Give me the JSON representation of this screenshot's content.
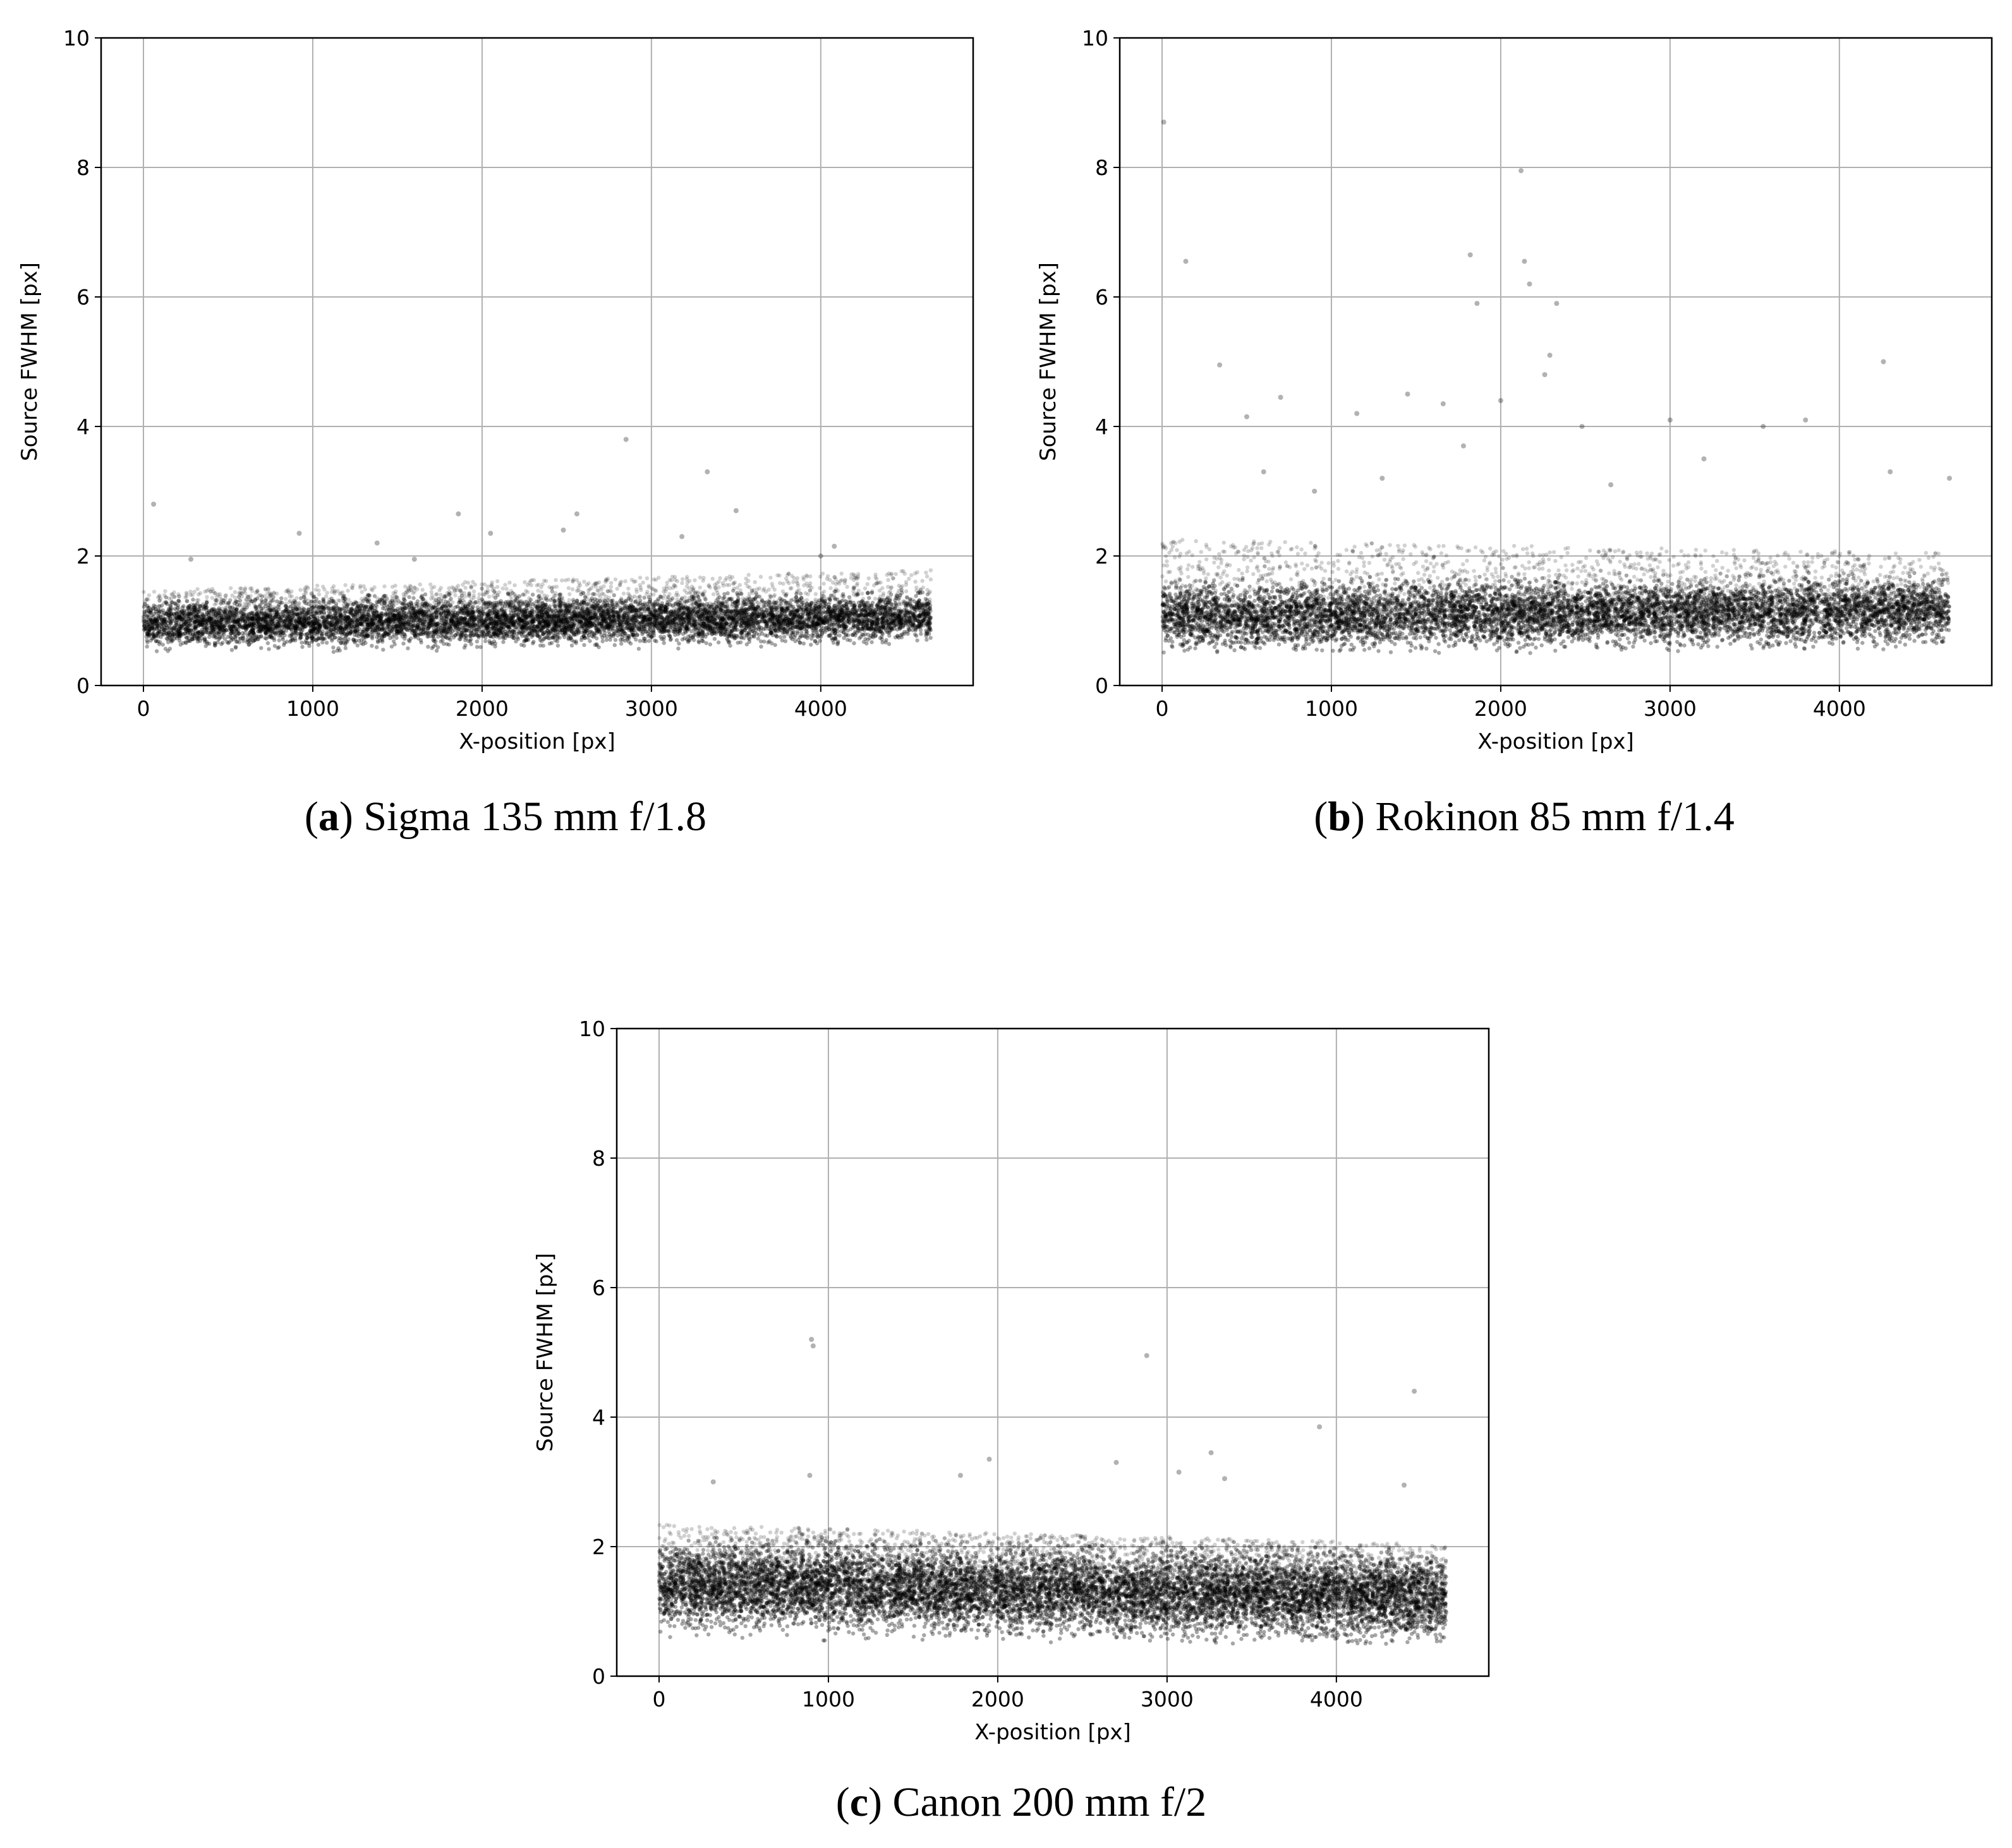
{
  "chart_data": [
    {
      "id": "a",
      "type": "scatter",
      "caption_letter": "a",
      "caption_text": "Sigma 135 mm f/1.8",
      "xlabel": "X-position [px]",
      "ylabel": "Source FWHM [px]",
      "xlim": [
        -250,
        4900
      ],
      "ylim": [
        0,
        10
      ],
      "xticks": [
        0,
        1000,
        2000,
        3000,
        4000
      ],
      "yticks": [
        0,
        2,
        4,
        6,
        8,
        10
      ],
      "grid": true,
      "marker_color": "#000000",
      "bulk": {
        "x_range": [
          0,
          4650
        ],
        "median_start": 0.95,
        "median_end": 1.05,
        "spread": 0.25,
        "y_min": 0.5,
        "y_max_start": 1.45,
        "y_max_end": 1.75,
        "count": 9000
      },
      "outliers": [
        [
          60,
          2.8
        ],
        [
          920,
          2.35
        ],
        [
          1380,
          2.2
        ],
        [
          1860,
          2.65
        ],
        [
          2050,
          2.35
        ],
        [
          2480,
          2.4
        ],
        [
          2560,
          2.65
        ],
        [
          2850,
          3.8
        ],
        [
          3180,
          2.3
        ],
        [
          3330,
          3.3
        ],
        [
          3500,
          2.7
        ],
        [
          4080,
          2.15
        ],
        [
          4000,
          2.0
        ],
        [
          280,
          1.95
        ],
        [
          1600,
          1.95
        ]
      ]
    },
    {
      "id": "b",
      "type": "scatter",
      "caption_letter": "b",
      "caption_text": "Rokinon 85 mm f/1.4",
      "xlabel": "X-position [px]",
      "ylabel": "Source FWHM [px]",
      "xlim": [
        -250,
        4900
      ],
      "ylim": [
        0,
        10
      ],
      "xticks": [
        0,
        1000,
        2000,
        3000,
        4000
      ],
      "yticks": [
        0,
        2,
        4,
        6,
        8,
        10
      ],
      "grid": true,
      "marker_color": "#000000",
      "bulk": {
        "x_range": [
          0,
          4650
        ],
        "median_start": 1.05,
        "median_end": 1.15,
        "spread": 0.35,
        "y_min": 0.5,
        "y_max_start": 2.2,
        "y_max_end": 2.0,
        "count": 9000
      },
      "outliers": [
        [
          10,
          8.7
        ],
        [
          140,
          6.55
        ],
        [
          340,
          4.95
        ],
        [
          500,
          4.15
        ],
        [
          700,
          4.45
        ],
        [
          1150,
          4.2
        ],
        [
          1450,
          4.5
        ],
        [
          1660,
          4.35
        ],
        [
          1780,
          3.7
        ],
        [
          1820,
          6.65
        ],
        [
          1860,
          5.9
        ],
        [
          2000,
          4.4
        ],
        [
          2120,
          7.95
        ],
        [
          2140,
          6.55
        ],
        [
          2170,
          6.2
        ],
        [
          2330,
          5.9
        ],
        [
          2290,
          5.1
        ],
        [
          2260,
          4.8
        ],
        [
          2480,
          4.0
        ],
        [
          3000,
          4.1
        ],
        [
          3200,
          3.5
        ],
        [
          3550,
          4.0
        ],
        [
          3800,
          4.1
        ],
        [
          4260,
          5.0
        ],
        [
          4300,
          3.3
        ],
        [
          4650,
          3.2
        ],
        [
          600,
          3.3
        ],
        [
          900,
          3.0
        ],
        [
          1300,
          3.2
        ],
        [
          2650,
          3.1
        ]
      ]
    },
    {
      "id": "c",
      "type": "scatter",
      "caption_letter": "c",
      "caption_text": "Canon 200 mm f/2",
      "xlabel": "X-position [px]",
      "ylabel": "Source FWHM [px]",
      "xlim": [
        -250,
        4900
      ],
      "ylim": [
        0,
        10
      ],
      "xticks": [
        0,
        1000,
        2000,
        3000,
        4000
      ],
      "yticks": [
        0,
        2,
        4,
        6,
        8,
        10
      ],
      "grid": true,
      "marker_color": "#000000",
      "bulk": {
        "x_range": [
          0,
          4650
        ],
        "median_start": 1.4,
        "median_end": 1.2,
        "spread": 0.45,
        "y_min": 0.5,
        "y_max_start": 2.3,
        "y_max_end": 2.0,
        "count": 12000
      },
      "outliers": [
        [
          900,
          5.2
        ],
        [
          910,
          5.1
        ],
        [
          890,
          3.1
        ],
        [
          1780,
          3.1
        ],
        [
          1950,
          3.35
        ],
        [
          2880,
          4.95
        ],
        [
          3070,
          3.15
        ],
        [
          3260,
          3.45
        ],
        [
          3340,
          3.05
        ],
        [
          3900,
          3.85
        ],
        [
          4460,
          4.4
        ],
        [
          4400,
          2.95
        ],
        [
          320,
          3.0
        ],
        [
          2700,
          3.3
        ]
      ]
    }
  ]
}
